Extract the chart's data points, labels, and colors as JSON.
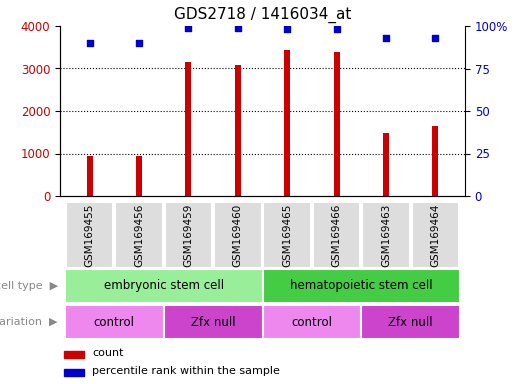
{
  "title": "GDS2718 / 1416034_at",
  "samples": [
    "GSM169455",
    "GSM169456",
    "GSM169459",
    "GSM169460",
    "GSM169465",
    "GSM169466",
    "GSM169463",
    "GSM169464"
  ],
  "counts": [
    950,
    950,
    3150,
    3080,
    3430,
    3380,
    1490,
    1640
  ],
  "percentile_ranks": [
    90,
    90,
    99,
    99,
    98,
    98,
    93,
    93
  ],
  "bar_color": "#cc0000",
  "dot_color": "#0000cc",
  "ylim_left": [
    0,
    4000
  ],
  "ylim_right": [
    0,
    100
  ],
  "yticks_left": [
    0,
    1000,
    2000,
    3000,
    4000
  ],
  "yticks_right": [
    0,
    25,
    50,
    75,
    100
  ],
  "ytick_labels_right": [
    "0",
    "25",
    "50",
    "75",
    "100%"
  ],
  "cell_type_labels": [
    {
      "label": "embryonic stem cell",
      "start": 0,
      "end": 4,
      "color": "#99ee99"
    },
    {
      "label": "hematopoietic stem cell",
      "start": 4,
      "end": 8,
      "color": "#44cc44"
    }
  ],
  "genotype_labels": [
    {
      "label": "control",
      "start": 0,
      "end": 2,
      "color": "#ee88ee"
    },
    {
      "label": "Zfx null",
      "start": 2,
      "end": 4,
      "color": "#cc44cc"
    },
    {
      "label": "control",
      "start": 4,
      "end": 6,
      "color": "#ee88ee"
    },
    {
      "label": "Zfx null",
      "start": 6,
      "end": 8,
      "color": "#cc44cc"
    }
  ],
  "legend_count_color": "#cc0000",
  "legend_pct_color": "#0000cc",
  "tick_label_color_left": "#cc0000",
  "tick_label_color_right": "#0000cc",
  "sample_box_color": "#dddddd",
  "left_label_color": "#888888"
}
